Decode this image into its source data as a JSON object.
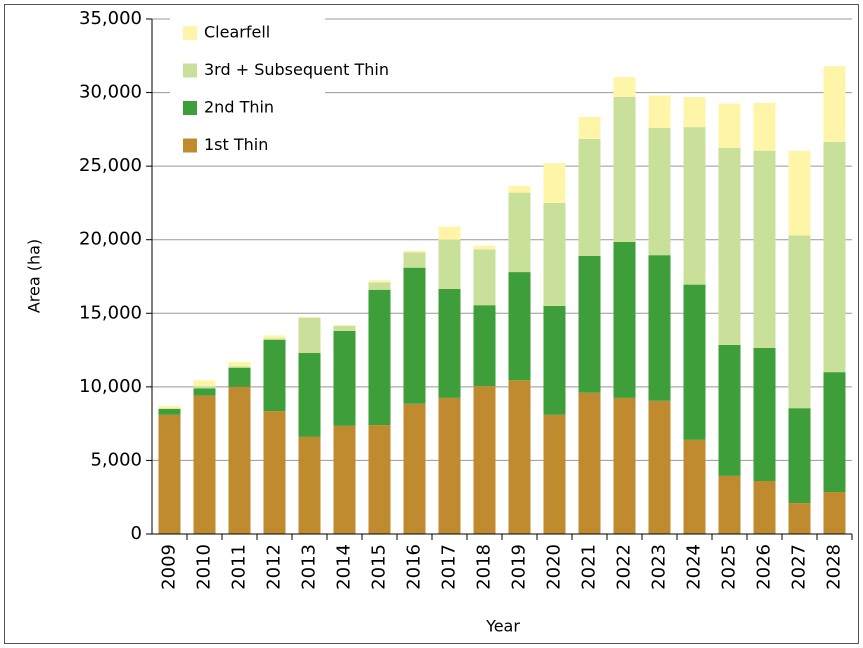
{
  "chart_data": {
    "type": "stacked_bar",
    "x_label": "Year",
    "y_label": "Area (ha)",
    "categories": [
      "2009",
      "2010",
      "2011",
      "2012",
      "2013",
      "2014",
      "2015",
      "2016",
      "2017",
      "2018",
      "2019",
      "2020",
      "2021",
      "2022",
      "2023",
      "2024",
      "2025",
      "2026",
      "2027",
      "2028"
    ],
    "series": [
      {
        "name": "1st Thin",
        "color": "#bf8b2e",
        "values": [
          8100,
          9400,
          10000,
          8350,
          6600,
          7350,
          7400,
          8850,
          9250,
          10050,
          10450,
          8100,
          9600,
          9250,
          9050,
          6400,
          3950,
          3600,
          2100,
          2850
        ]
      },
      {
        "name": "2nd Thin",
        "color": "#3e9e3a",
        "values": [
          400,
          500,
          1300,
          4850,
          5700,
          6450,
          9200,
          9250,
          7400,
          5500,
          7350,
          7400,
          9300,
          10600,
          9900,
          10550,
          8900,
          9050,
          6450,
          8150
        ]
      },
      {
        "name": "3rd + Subsequent Thin",
        "color": "#c9e09a",
        "values": [
          50,
          150,
          100,
          100,
          2400,
          350,
          500,
          1050,
          3350,
          3800,
          5400,
          7000,
          7950,
          9850,
          8650,
          10700,
          13400,
          13400,
          11750,
          15650
        ]
      },
      {
        "name": "Clearfell",
        "color": "#fff5a8",
        "values": [
          150,
          400,
          300,
          200,
          50,
          50,
          150,
          100,
          900,
          250,
          450,
          2700,
          1500,
          1350,
          2200,
          2050,
          3000,
          3250,
          5750,
          5150
        ]
      }
    ],
    "ylim": [
      0,
      35000
    ],
    "yticks": [
      0,
      {
        "value": 5000,
        "label": "5,000"
      },
      {
        "value": 10000,
        "label": "10,000"
      },
      {
        "value": 15000,
        "label": "15,000"
      },
      {
        "value": 20000,
        "label": "20,000"
      },
      {
        "value": 25000,
        "label": "25,000"
      },
      {
        "value": 30000,
        "label": "30,000"
      },
      {
        "value": 35000,
        "label": "35,000"
      }
    ],
    "grid": true,
    "legend": "top-left"
  }
}
